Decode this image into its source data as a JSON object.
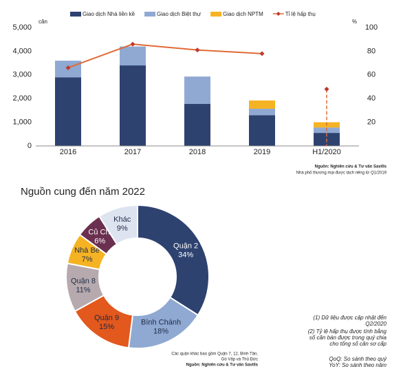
{
  "chart_data": [
    {
      "type": "bar",
      "stacked": true,
      "y_label": "căn",
      "y2_label": "%",
      "categories": [
        "2016",
        "2017",
        "2018",
        "2019",
        "H1/2020"
      ],
      "series": [
        {
          "name": "Giao dịch Nhà liền kề",
          "color": "#2e4270",
          "values": [
            2900,
            3400,
            1780,
            1300,
            550
          ]
        },
        {
          "name": "Giao dịch Biệt thự",
          "color": "#8fa9d2",
          "values": [
            700,
            800,
            1150,
            270,
            230
          ]
        },
        {
          "name": "Giao dịch NPTM",
          "color": "#f5b324",
          "values": [
            0,
            0,
            0,
            350,
            220
          ]
        },
        {
          "name": "Tỉ lệ hấp thụ",
          "type": "line",
          "axis": "y2",
          "color": "#e06a35",
          "marker_color": "#c0392b",
          "values": [
            66,
            86,
            81,
            78,
            48
          ]
        }
      ],
      "ylim": [
        0,
        5000
      ],
      "yticks": [
        0,
        {
          "value": 1000,
          "label": "1,000"
        },
        {
          "value": 2000,
          "label": "2,000"
        },
        {
          "value": 3000,
          "label": "3,000"
        },
        {
          "value": 4000,
          "label": "4,000"
        },
        {
          "value": 5000,
          "label": "5,000"
        }
      ],
      "y2lim": [
        0,
        100
      ],
      "y2ticks": [
        20,
        40,
        60,
        80,
        100
      ],
      "grid": false,
      "source": [
        "Nguồn: Nghiên cứu & Tư vấn Savills",
        "Nhà phố thương mại được tách riêng từ Q1/2019"
      ]
    },
    {
      "type": "pie",
      "donut": true,
      "title": "Nguồn cung đến năm 2022",
      "categories": [
        "Quận 2",
        "Bình Chánh",
        "Quận 9",
        "Quận 8",
        "Nhà Bè",
        "Củ Chi",
        "Khác"
      ],
      "values": [
        34,
        18,
        15,
        11,
        7,
        6,
        9
      ],
      "value_labels": [
        "34%",
        "18%",
        "15%",
        "11%",
        "7%",
        "6%",
        "9%"
      ],
      "colors": [
        "#2e4270",
        "#8fa9d2",
        "#e2581d",
        "#b6aaae",
        "#f5b324",
        "#6b2f4f",
        "#dde4f0"
      ],
      "label_colors": [
        "#ffffff",
        "#1f2a44",
        "#1f2a44",
        "#1f2a44",
        "#1f2a44",
        "#ffffff",
        "#1f2a44"
      ],
      "source": [
        "Các quận khác bao gồm Quận 7, 12, Bình Tân,",
        "Gò Vấp và Thủ Đức",
        "Nguồn: Nghiên cứu & Tư vấn Savills"
      ]
    }
  ],
  "footnotes": [
    "(1) Dữ liệu được cập nhật đến",
    "Q2/2020",
    "(2) Tỷ lệ hấp thụ được tính bằng",
    "số căn bán được trong quý chia",
    "cho tổng số căn sơ cấp",
    "QoQ: So sánh theo quý",
    "YoY: So sánh theo năm"
  ]
}
